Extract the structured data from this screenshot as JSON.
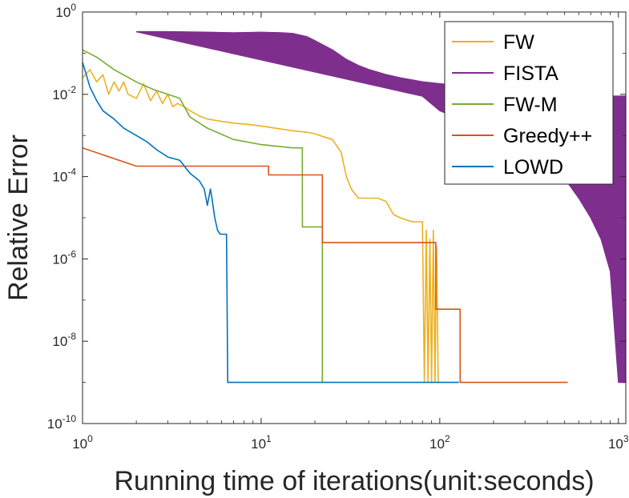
{
  "chart_data": {
    "type": "line",
    "xscale": "log",
    "yscale": "log",
    "xlabel": "Running time of iterations(unit:seconds)",
    "ylabel": "Relative Error",
    "xlim": [
      1,
      1100
    ],
    "ylim": [
      1e-10,
      1
    ],
    "x_ticks": [
      {
        "value": 1,
        "base": "10",
        "exp": "0"
      },
      {
        "value": 10,
        "base": "10",
        "exp": "1"
      },
      {
        "value": 100,
        "base": "10",
        "exp": "2"
      },
      {
        "value": 1000,
        "base": "10",
        "exp": "3"
      }
    ],
    "y_ticks": [
      {
        "value": 1,
        "base": "10",
        "exp": "0"
      },
      {
        "value": 0.01,
        "base": "10",
        "exp": "-2"
      },
      {
        "value": 0.0001,
        "base": "10",
        "exp": "-4"
      },
      {
        "value": 1e-06,
        "base": "10",
        "exp": "-6"
      },
      {
        "value": 1e-08,
        "base": "10",
        "exp": "-8"
      },
      {
        "value": 1e-10,
        "base": "10",
        "exp": "-10"
      }
    ],
    "legend_position": "top-right",
    "series": [
      {
        "name": "FW",
        "color": "#EDB120",
        "x": [
          1.0,
          1.1,
          1.2,
          1.3,
          1.4,
          1.5,
          1.6,
          1.7,
          1.8,
          2.0,
          2.2,
          2.4,
          2.6,
          2.8,
          3.0,
          3.2,
          3.4,
          3.7,
          4.0,
          4.5,
          5,
          6,
          7,
          8,
          9,
          10,
          12,
          15,
          18,
          20,
          22,
          25,
          28,
          30,
          32,
          35,
          40,
          45,
          50,
          55,
          60,
          70,
          80,
          82,
          84,
          86,
          88,
          90,
          92,
          94,
          96,
          98,
          100
        ],
        "y": [
          0.025,
          0.04,
          0.02,
          0.03,
          0.01,
          0.02,
          0.012,
          0.02,
          0.01,
          0.008,
          0.018,
          0.007,
          0.012,
          0.006,
          0.01,
          0.005,
          0.006,
          0.005,
          0.004,
          0.003,
          0.0025,
          0.0022,
          0.002,
          0.0019,
          0.0018,
          0.0017,
          0.0015,
          0.0013,
          0.0012,
          0.0011,
          0.00095,
          0.0008,
          0.0004,
          0.0001,
          5e-05,
          3e-05,
          3e-05,
          3e-05,
          2.5e-05,
          1.2e-05,
          1e-05,
          8e-06,
          8e-06,
          1e-09,
          5e-06,
          1e-09,
          3e-06,
          1e-09,
          5e-06,
          1e-09,
          2e-06,
          1e-09,
          1e-09
        ]
      },
      {
        "name": "FISTA",
        "color": "#7E2F8E",
        "x": [
          2.0,
          3,
          5,
          7,
          10,
          13,
          15,
          18,
          20,
          25,
          30,
          35,
          40,
          50,
          60,
          80,
          100,
          130,
          160,
          200,
          300,
          400,
          500,
          600,
          700,
          800,
          1000,
          1100
        ],
        "y": [
          0.33,
          0.33,
          0.32,
          0.31,
          0.32,
          0.31,
          0.3,
          0.25,
          0.2,
          0.12,
          0.07,
          0.05,
          0.04,
          0.03,
          0.025,
          0.02,
          0.018,
          0.016,
          0.015,
          0.014,
          0.012,
          0.011,
          0.01,
          0.0095,
          0.0092,
          0.009,
          0.009,
          0.009
        ],
        "band_low_x": [
          80,
          100,
          130,
          160,
          200,
          300,
          400,
          500,
          600,
          700,
          800,
          900,
          1000,
          1100
        ],
        "band_low_y": [
          0.009,
          0.004,
          0.0025,
          0.0018,
          0.0012,
          0.0006,
          0.00025,
          9e-05,
          3e-05,
          1e-05,
          3e-06,
          5e-07,
          1e-09,
          1e-09
        ]
      },
      {
        "name": "FW-M",
        "color": "#77AC30",
        "x": [
          1.0,
          1.2,
          1.5,
          2.0,
          2.5,
          3.0,
          3.5,
          4.0,
          5,
          7,
          10,
          15,
          17,
          17.01,
          22,
          22.01
        ],
        "y": [
          0.12,
          0.08,
          0.04,
          0.02,
          0.013,
          0.01,
          0.008,
          0.0028,
          0.0015,
          0.0008,
          0.0006,
          0.0005,
          0.0005,
          6e-06,
          6e-06,
          1e-09
        ]
      },
      {
        "name": "Greedy++",
        "color": "#D95319",
        "x": [
          1.0,
          2.0,
          11,
          11.01,
          22,
          22.01,
          95,
          95.01,
          130,
          130.01,
          520
        ],
        "y": [
          0.0005,
          0.00018,
          0.00018,
          0.00011,
          0.00011,
          2.5e-06,
          2.5e-06,
          6e-08,
          6e-08,
          1e-09,
          1e-09
        ]
      },
      {
        "name": "LOWD",
        "color": "#0072BD",
        "x": [
          1.0,
          1.05,
          1.1,
          1.2,
          1.3,
          1.5,
          1.7,
          2.0,
          2.3,
          2.6,
          3.0,
          3.5,
          4.0,
          4.5,
          4.8,
          5.0,
          5.2,
          5.3,
          5.5,
          5.7,
          5.9,
          6.0,
          6.2,
          6.4,
          6.5,
          6.6,
          10,
          30,
          128
        ],
        "y": [
          0.06,
          0.03,
          0.015,
          0.007,
          0.004,
          0.0025,
          0.0015,
          0.001,
          0.0007,
          0.00045,
          0.0003,
          0.00025,
          0.00012,
          8e-05,
          5e-05,
          2e-05,
          5e-05,
          3e-05,
          1e-05,
          5e-06,
          4e-06,
          4e-06,
          4e-06,
          4e-06,
          1e-09,
          1e-09,
          1e-09,
          1e-09,
          1e-09
        ]
      }
    ]
  }
}
